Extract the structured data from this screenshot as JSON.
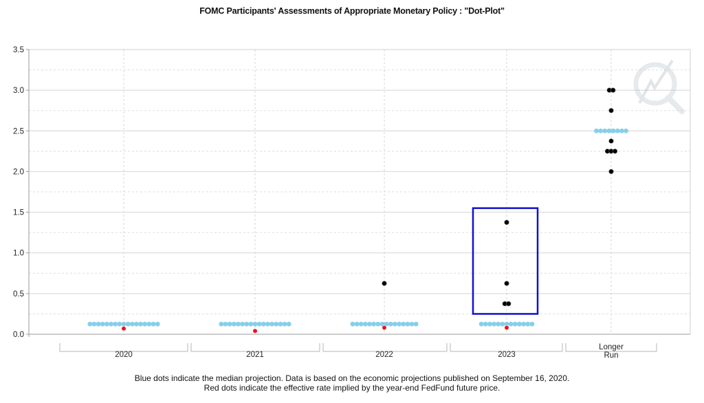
{
  "chart_data": {
    "type": "scatter",
    "title": "FOMC Participants' Assessments of Appropriate Monetary Policy : \"Dot-Plot\"",
    "xlabel": "",
    "ylabel": "",
    "categories": [
      "2020",
      "2021",
      "2022",
      "2023",
      "Longer\nRun"
    ],
    "ylim": [
      0,
      3.5
    ],
    "y_ticks": [
      "0.0",
      "0.5",
      "1.0",
      "1.5",
      "2.0",
      "2.5",
      "3.0",
      "3.5"
    ],
    "grid": true,
    "series": [
      {
        "role": "participants",
        "color": "#000000",
        "points": [
          {
            "category": "2022",
            "y": 0.625
          },
          {
            "category": "2023",
            "y": 1.375
          },
          {
            "category": "2023",
            "y": 0.625
          },
          {
            "category": "2023",
            "y": 0.375
          },
          {
            "category": "2023",
            "y": 0.375
          },
          {
            "category": "Longer\nRun",
            "y": 3.0
          },
          {
            "category": "Longer\nRun",
            "y": 3.0
          },
          {
            "category": "Longer\nRun",
            "y": 2.75
          },
          {
            "category": "Longer\nRun",
            "y": 2.375
          },
          {
            "category": "Longer\nRun",
            "y": 2.25
          },
          {
            "category": "Longer\nRun",
            "y": 2.25
          },
          {
            "category": "Longer\nRun",
            "y": 2.25
          },
          {
            "category": "Longer\nRun",
            "y": 2.0
          }
        ]
      },
      {
        "role": "median",
        "color": "#87ceeb",
        "points": [
          {
            "category": "2020",
            "y": 0.125,
            "count": 17
          },
          {
            "category": "2021",
            "y": 0.125,
            "count": 17
          },
          {
            "category": "2022",
            "y": 0.125,
            "count": 16
          },
          {
            "category": "2023",
            "y": 0.125,
            "count": 13
          },
          {
            "category": "Longer\nRun",
            "y": 2.5,
            "count": 8
          }
        ]
      },
      {
        "role": "effective-rate",
        "color": "#e8151b",
        "points": [
          {
            "category": "2020",
            "y": 0.07
          },
          {
            "category": "2021",
            "y": 0.04
          },
          {
            "category": "2022",
            "y": 0.08
          },
          {
            "category": "2023",
            "y": 0.08
          }
        ]
      }
    ],
    "highlight": {
      "category": "2023",
      "y_range": [
        0.25,
        1.55
      ],
      "color": "#1010d0"
    },
    "footnotes": [
      "Blue dots indicate the median projection. Data is based on the economic projections published on September 16, 2020.",
      "Red dots indicate the effective rate implied by the year-end FedFund future price."
    ]
  }
}
